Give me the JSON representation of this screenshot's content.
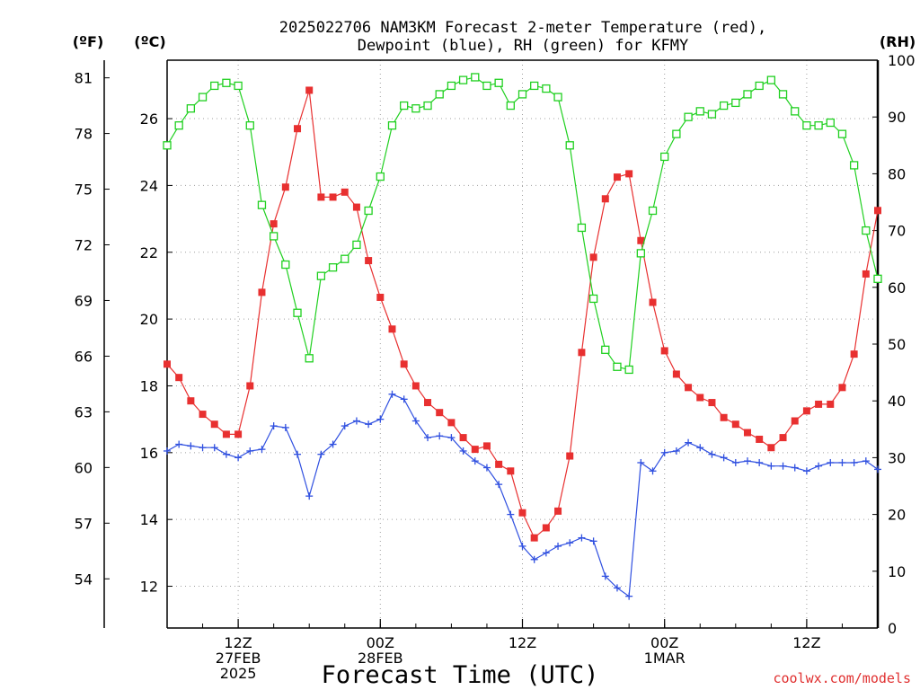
{
  "chart_data": {
    "type": "line",
    "title_line1": "2025022706 NAM3KM Forecast 2-meter Temperature (red),",
    "title_line2": "Dewpoint (blue), RH (green) for KFMY",
    "xlabel": "Forecast Time (UTC)",
    "credit": "coolwx.com/models",
    "axis_units": {
      "fahrenheit": "(ºF)",
      "celsius": "(ºC)",
      "rh": "(RH)"
    },
    "celsius_range": [
      10.75,
      27.75
    ],
    "rh_range": [
      0,
      100
    ],
    "fahrenheit_ticks": [
      "54",
      "57",
      "60",
      "63",
      "66",
      "69",
      "72",
      "75",
      "78",
      "81"
    ],
    "celsius_ticks": [
      "12",
      "14",
      "16",
      "18",
      "20",
      "22",
      "24",
      "26"
    ],
    "rh_ticks": [
      "0",
      "10",
      "20",
      "30",
      "40",
      "50",
      "60",
      "70",
      "80",
      "90",
      "100"
    ],
    "x_range_hours": [
      6,
      66
    ],
    "x_ticks": [
      {
        "hour": 12,
        "lines": [
          "12Z",
          "27FEB",
          "2025"
        ]
      },
      {
        "hour": 24,
        "lines": [
          "00Z",
          "28FEB"
        ]
      },
      {
        "hour": 36,
        "lines": [
          "12Z"
        ]
      },
      {
        "hour": 48,
        "lines": [
          "00Z",
          "1MAR"
        ]
      },
      {
        "hour": 60,
        "lines": [
          "12Z"
        ]
      }
    ],
    "grid": true,
    "x_hours": [
      6,
      7,
      8,
      9,
      10,
      11,
      12,
      13,
      14,
      15,
      16,
      17,
      18,
      19,
      20,
      21,
      22,
      23,
      24,
      25,
      26,
      27,
      28,
      29,
      30,
      31,
      32,
      33,
      34,
      35,
      36,
      37,
      38,
      39,
      40,
      41,
      42,
      43,
      44,
      45,
      46,
      47,
      48,
      49,
      50,
      51,
      52,
      53,
      54,
      55,
      56,
      57,
      58,
      59,
      60,
      61,
      62,
      63,
      64,
      65,
      66
    ],
    "series": [
      {
        "name": "Temperature",
        "color": "#e83030",
        "marker": "filled-square",
        "axis": "celsius",
        "values": [
          18.65,
          18.25,
          17.55,
          17.15,
          16.85,
          16.55,
          16.55,
          18.0,
          20.8,
          22.85,
          23.95,
          25.7,
          26.85,
          23.65,
          23.65,
          23.8,
          23.35,
          21.75,
          20.65,
          19.7,
          18.65,
          18.0,
          17.5,
          17.2,
          16.9,
          16.45,
          16.1,
          16.2,
          15.65,
          15.45,
          14.2,
          13.45,
          13.75,
          14.25,
          15.9,
          19.0,
          21.85,
          23.6,
          24.25,
          24.35,
          22.35,
          20.5,
          19.05,
          18.35,
          17.95,
          17.65,
          17.5,
          17.05,
          16.85,
          16.6,
          16.4,
          16.15,
          16.45,
          16.95,
          17.25,
          17.45,
          17.45,
          17.95,
          18.95,
          21.35,
          23.25
        ]
      },
      {
        "name": "Dewpoint",
        "color": "#3050e0",
        "marker": "plus",
        "axis": "celsius",
        "values": [
          16.05,
          16.25,
          16.2,
          16.15,
          16.15,
          15.95,
          15.85,
          16.05,
          16.1,
          16.8,
          16.75,
          15.95,
          14.7,
          15.95,
          16.25,
          16.8,
          16.95,
          16.85,
          17.0,
          17.75,
          17.6,
          16.95,
          16.45,
          16.5,
          16.45,
          16.05,
          15.75,
          15.55,
          15.05,
          14.15,
          13.2,
          12.8,
          13.0,
          13.2,
          13.3,
          13.45,
          13.35,
          12.3,
          11.95,
          11.7,
          15.7,
          15.45,
          16.0,
          16.05,
          16.3,
          16.15,
          15.95,
          15.85,
          15.7,
          15.75,
          15.7,
          15.6,
          15.6,
          15.55,
          15.45,
          15.6,
          15.7,
          15.7,
          15.7,
          15.75,
          15.5
        ]
      },
      {
        "name": "RH",
        "color": "#20d020",
        "marker": "open-square",
        "axis": "rh",
        "values": [
          85,
          88.5,
          91.5,
          93.5,
          95.5,
          96,
          95.5,
          88.5,
          74.5,
          69,
          64,
          55.5,
          47.5,
          62,
          63.5,
          65,
          67.5,
          73.5,
          79.5,
          88.5,
          92,
          91.5,
          92,
          94,
          95.5,
          96.5,
          97,
          95.5,
          96,
          92,
          94,
          95.5,
          95,
          93.5,
          85,
          70.5,
          58,
          49,
          46,
          45.5,
          66,
          73.5,
          83,
          87,
          90,
          91,
          90.5,
          92,
          92.5,
          94,
          95.5,
          96.5,
          94,
          91,
          88.5,
          88.5,
          89,
          87,
          81.5,
          70,
          61.5
        ]
      }
    ]
  }
}
